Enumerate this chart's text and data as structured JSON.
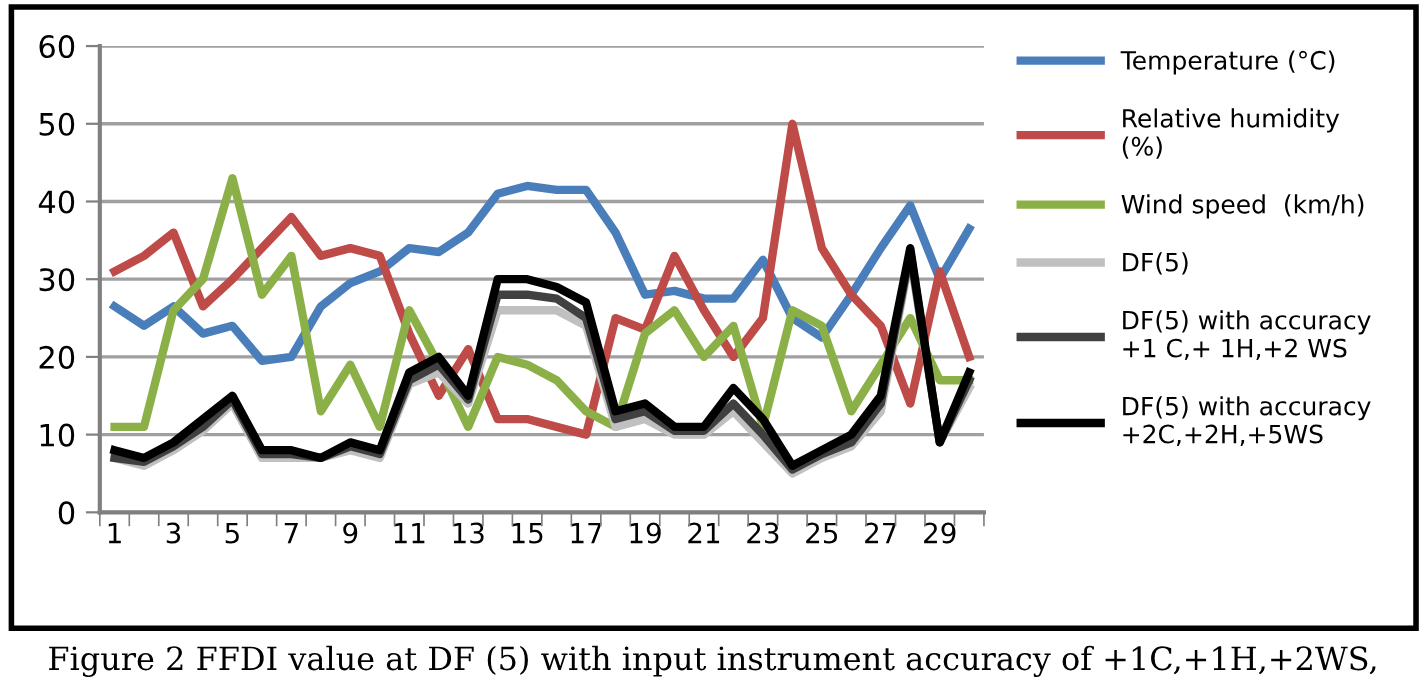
{
  "chart_data": {
    "type": "line",
    "categories": [
      "1",
      null,
      "3",
      null,
      "5",
      null,
      "7",
      null,
      "9",
      null,
      "11",
      null,
      "13",
      null,
      "15",
      null,
      "17",
      null,
      "19",
      null,
      "21",
      null,
      "23",
      null,
      "25",
      null,
      "27",
      null,
      "29",
      null
    ],
    "series": [
      {
        "name": "Temperature (°C)",
        "color": "#4a7ebb",
        "values": [
          26.5,
          24,
          26.5,
          23,
          24,
          19.5,
          20,
          26.5,
          29.5,
          31,
          34,
          33.5,
          36,
          41,
          42,
          41.5,
          41.5,
          36,
          28,
          28.5,
          27.5,
          27.5,
          32.5,
          25,
          22.5,
          28,
          34,
          39.5,
          30,
          36.5
        ]
      },
      {
        "name": "Relative humidity\n(%)",
        "color": "#be4b48",
        "values": [
          31,
          33,
          36,
          26.5,
          30,
          34,
          38,
          33,
          34,
          33,
          23,
          15,
          21,
          12,
          12,
          11,
          10,
          25,
          23.5,
          33,
          26,
          20,
          25,
          50,
          34,
          28,
          24,
          14,
          31,
          20
        ]
      },
      {
        "name": "Wind speed  (km/h)",
        "color": "#8cb048",
        "values": [
          11,
          11,
          26,
          30,
          43,
          28,
          33,
          13,
          19,
          11,
          26,
          19,
          11,
          20,
          19,
          17,
          13,
          11,
          23,
          26,
          20,
          24,
          11,
          26,
          24,
          13,
          19,
          25,
          17,
          17
        ]
      },
      {
        "name": "DF(5)",
        "color": "#c0c0c0",
        "values": [
          7,
          6,
          8,
          10.5,
          14,
          7,
          7,
          7,
          8,
          7,
          16.5,
          18,
          14,
          26,
          26,
          26,
          24,
          11,
          12,
          10,
          10,
          13,
          9,
          5,
          7,
          8.5,
          13,
          33,
          9,
          16
        ]
      },
      {
        "name": "DF(5) with accuracy\n+1 C,+ 1H,+2 WS",
        "color": "#404040",
        "values": [
          7,
          6.5,
          8.5,
          11,
          14.5,
          7.5,
          7.5,
          7,
          8.5,
          7.5,
          17,
          19,
          14.5,
          28,
          28,
          27.5,
          25,
          12,
          13,
          10.5,
          10.5,
          14,
          10,
          5.5,
          7.5,
          9,
          14,
          33.5,
          9,
          17
        ]
      },
      {
        "name": "DF(5) with accuracy\n+2C,+2H,+5WS",
        "color": "#000000",
        "values": [
          8,
          7,
          9,
          12,
          15,
          8,
          8,
          7,
          9,
          8,
          18,
          20,
          15,
          30,
          30,
          29,
          27,
          13,
          14,
          11,
          11,
          16,
          12,
          6,
          8,
          10,
          15,
          34,
          9,
          18
        ]
      }
    ],
    "ylim": [
      0,
      60
    ],
    "yticks": [
      0,
      10,
      20,
      30,
      40,
      50,
      60
    ],
    "grid": "y",
    "legend": "right",
    "marker": "none",
    "line_style": "solid",
    "annotations": [
      "Figure 2 FFDI value at DF (5) with input instrument accuracy of +1C,+1H,+2WS,"
    ]
  }
}
